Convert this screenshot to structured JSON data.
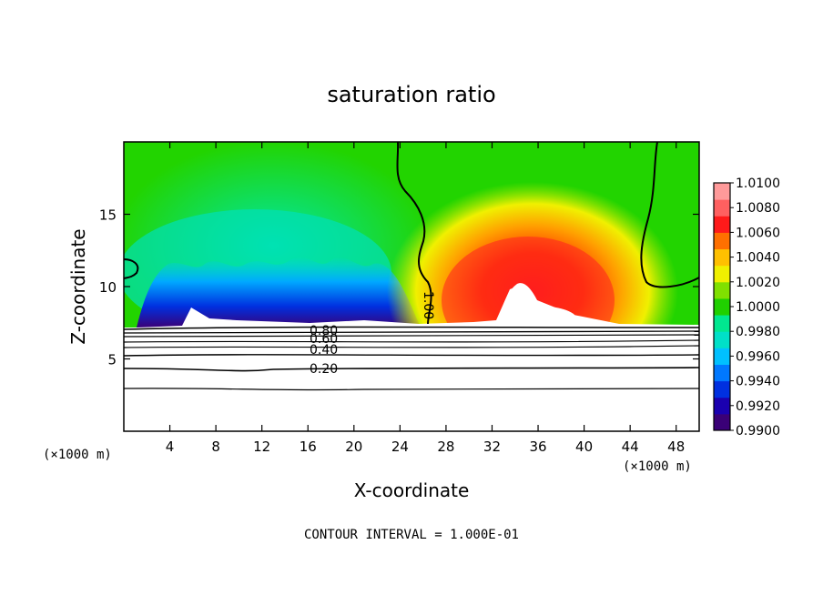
{
  "chart_data": {
    "type": "heatmap",
    "title": "saturation ratio",
    "xlabel": "X-coordinate",
    "ylabel": "Z-coordinate",
    "x_unit": "(×1000 m)",
    "x_unit_left": "(×1000 m)",
    "xlim": [
      0,
      50
    ],
    "ylim": [
      0,
      20
    ],
    "x_ticks": [
      4,
      8,
      12,
      16,
      20,
      24,
      28,
      32,
      36,
      40,
      44,
      48
    ],
    "y_ticks": [
      5,
      10,
      15
    ],
    "footer": "CONTOUR INTERVAL = 1.000E-01",
    "colorbar": {
      "min": 0.99,
      "max": 1.01,
      "ticks": [
        "1.0100",
        "1.0080",
        "1.0060",
        "1.0040",
        "1.0020",
        "1.0000",
        "0.9980",
        "0.9960",
        "0.9940",
        "0.9920",
        "0.9900"
      ]
    },
    "contour_labels": [
      "0.80",
      "0.60",
      "0.40",
      "0.20",
      "1.00"
    ],
    "colors": {
      "low": "#3a0077",
      "mid_low": "#00c0ff",
      "neutral": "#20d000",
      "mid_high": "#f0f000",
      "high": "#ff0000",
      "top": "#ff9090"
    }
  }
}
